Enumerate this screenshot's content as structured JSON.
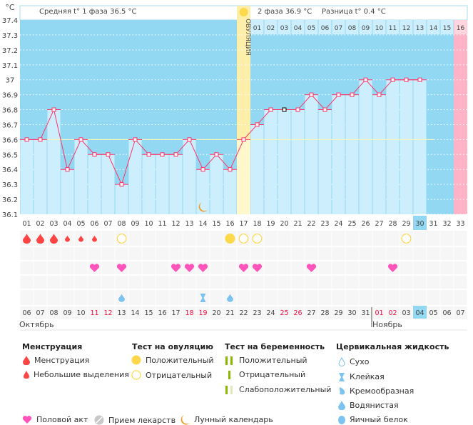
{
  "header": {
    "unit": "°C",
    "phase1": "Средняя t° 1 фаза 36.5 °C",
    "phase2": "2 фаза 36.9 °C",
    "diff": "Разница t° 0.4 °C",
    "ovulation_label": "ОВУЛЯЦИЯ"
  },
  "colors": {
    "bg": "#93d8f2",
    "bar": "#cdeefc",
    "line": "#ff3366",
    "ovulation": "#fdeeaa",
    "expected_period": "#ffb3c6",
    "weekend": "#ee1144",
    "coverline": "#fff7b0"
  },
  "chart_data": {
    "type": "line",
    "ylabel": "°C",
    "ylim": [
      36.1,
      37.4
    ],
    "yticks": [
      "37.4",
      "37.3",
      "37.2",
      "37.1",
      "37",
      "36.9",
      "36.8",
      "36.7",
      "36.6",
      "36.5",
      "36.4",
      "36.3",
      "36.2",
      "36.1"
    ],
    "cycle_days": [
      "01",
      "02",
      "03",
      "04",
      "05",
      "06",
      "07",
      "08",
      "09",
      "10",
      "11",
      "12",
      "13",
      "14",
      "15",
      "16",
      "17",
      "18",
      "19",
      "20",
      "21",
      "22",
      "23",
      "24",
      "25",
      "26",
      "27",
      "28",
      "29",
      "30",
      "31",
      "32",
      "33"
    ],
    "temperatures": [
      36.6,
      36.6,
      36.8,
      36.4,
      36.6,
      36.5,
      36.5,
      36.3,
      36.6,
      36.5,
      36.5,
      36.5,
      36.6,
      36.4,
      36.5,
      36.4,
      36.6,
      36.7,
      36.8,
      36.8,
      36.8,
      36.9,
      36.8,
      36.9,
      36.9,
      37.0,
      36.9,
      37.0,
      37.0,
      37.0
    ],
    "coverline": 36.6,
    "ovulation_day": 17,
    "expected_period_day": 33,
    "current_day": 30,
    "manual_point_day": 20,
    "phase2_days": [
      "01",
      "02",
      "03",
      "04",
      "05",
      "06",
      "07",
      "08",
      "09",
      "10",
      "11",
      "12",
      "13",
      "14",
      "15",
      "16"
    ],
    "dates": [
      "06",
      "07",
      "08",
      "09",
      "10",
      "11",
      "12",
      "13",
      "14",
      "15",
      "16",
      "17",
      "18",
      "19",
      "20",
      "21",
      "22",
      "23",
      "24",
      "25",
      "26",
      "27",
      "28",
      "29",
      "30",
      "31",
      "01",
      "02",
      "03",
      "04",
      "05",
      "06",
      "07"
    ],
    "weekend_days": [
      6,
      7,
      13,
      14,
      20,
      21,
      27,
      28
    ],
    "months": [
      {
        "label": "Октябрь",
        "start_day": 1
      },
      {
        "label": "Ноябрь",
        "start_day": 27
      }
    ],
    "menstruation": {
      "1": "heavy",
      "2": "heavy",
      "3": "heavy",
      "4": "light",
      "5": "light",
      "6": "light"
    },
    "ovulation_tests": {
      "8": "negative",
      "16": "positive",
      "17": "negative",
      "18": "negative",
      "29": "negative"
    },
    "intercourse": [
      6,
      8,
      12,
      13,
      14,
      17,
      18,
      22,
      28
    ],
    "cervical_fluid": {
      "8": "watery",
      "14": "sticky",
      "16": "watery"
    },
    "moon": [
      14
    ]
  },
  "legend": {
    "menstruation": {
      "title": "Менструация",
      "items": [
        "Менструация",
        "Небольшие выделения"
      ]
    },
    "ovulation_test": {
      "title": "Тест на овуляцию",
      "items": [
        "Положительный",
        "Отрицательный"
      ]
    },
    "pregnancy_test": {
      "title": "Тест на беременность",
      "items": [
        "Положительный",
        "Отрицательный",
        "Слабоположительный"
      ]
    },
    "cervical": {
      "title": "Цервикальная жидкость",
      "items": [
        "Сухо",
        "Клейкая",
        "Кремообразная",
        "Водянистая",
        "Яичный белок"
      ]
    },
    "other": [
      "Половой акт",
      "Прием лекарств",
      "Лунный календарь"
    ]
  }
}
